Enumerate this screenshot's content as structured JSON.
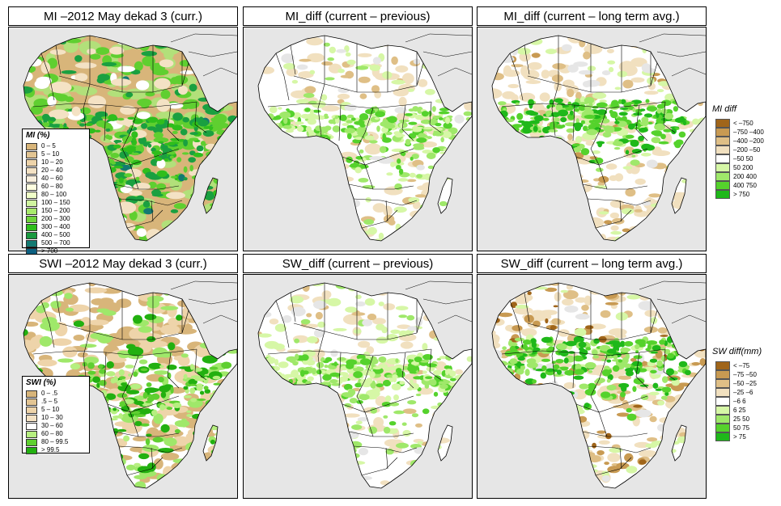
{
  "panels": [
    {
      "id": "mi_curr",
      "title": "MI –2012 May dekad 3 (curr.)",
      "style": "mi"
    },
    {
      "id": "mi_prev",
      "title": "MI_diff (current – previous)",
      "style": "diffA"
    },
    {
      "id": "mi_lta",
      "title": "MI_diff (current – long term avg.)",
      "style": "diffB"
    },
    {
      "id": "sw_curr",
      "title": "SWI –2012 May dekad 3 (curr.)",
      "style": "swi"
    },
    {
      "id": "sw_prev",
      "title": "SW_diff (current – previous)",
      "style": "diffA"
    },
    {
      "id": "sw_lta",
      "title": "SW_diff (current – long term avg.)",
      "style": "diffC"
    }
  ],
  "legend_mi": {
    "title": "MI (%)",
    "items": [
      {
        "label": "0 – 5",
        "color": "#d8b57a"
      },
      {
        "label": "5 – 10",
        "color": "#e3c593"
      },
      {
        "label": "10 – 20",
        "color": "#eed4aa"
      },
      {
        "label": "20 – 40",
        "color": "#f4e2c4"
      },
      {
        "label": "40 – 60",
        "color": "#f9efdd"
      },
      {
        "label": "60 – 80",
        "color": "#ffffe0"
      },
      {
        "label": "80 – 100",
        "color": "#f0ffc8"
      },
      {
        "label": "100 – 150",
        "color": "#d0f5a0"
      },
      {
        "label": "150 – 200",
        "color": "#a8ea6c"
      },
      {
        "label": "200 – 300",
        "color": "#6fd43c"
      },
      {
        "label": "300 – 400",
        "color": "#2fbe1c"
      },
      {
        "label": "400 – 500",
        "color": "#1a9a40"
      },
      {
        "label": "500 – 700",
        "color": "#137a72"
      },
      {
        "label": "> 700",
        "color": "#0b5f80"
      }
    ]
  },
  "legend_swi": {
    "title": "SWI (%)",
    "items": [
      {
        "label": "0 – .5",
        "color": "#d8b57a"
      },
      {
        "label": ".5 – 5",
        "color": "#e3c593"
      },
      {
        "label": "5 – 10",
        "color": "#eed4aa"
      },
      {
        "label": "10 – 30",
        "color": "#f4e2c4"
      },
      {
        "label": "30 – 60",
        "color": "#ffffff"
      },
      {
        "label": "60 – 80",
        "color": "#b6ef80"
      },
      {
        "label": "80 – 99.5",
        "color": "#5fd030"
      },
      {
        "label": "> 99.5",
        "color": "#22b010"
      }
    ]
  },
  "legend_mi_diff": {
    "title": "MI diff",
    "items": [
      {
        "label": "< –750",
        "color": "#a0651a"
      },
      {
        "label": "–750 –400",
        "color": "#c89a52"
      },
      {
        "label": "–400 –200",
        "color": "#dfbf86"
      },
      {
        "label": "–200 –50",
        "color": "#f1e0bf"
      },
      {
        "label": "–50  50",
        "color": "#ffffff"
      },
      {
        "label": " 50  200",
        "color": "#d6f7a6"
      },
      {
        "label": "200  400",
        "color": "#9fe86a"
      },
      {
        "label": "400  750",
        "color": "#55d22c"
      },
      {
        "label": "> 750",
        "color": "#1fb81a"
      }
    ]
  },
  "legend_sw_diff": {
    "title": "SW diff(mm)",
    "items": [
      {
        "label": "< –75",
        "color": "#a0651a"
      },
      {
        "label": "–75 –50",
        "color": "#c89a52"
      },
      {
        "label": "–50 –25",
        "color": "#dfbf86"
      },
      {
        "label": "–25 –6",
        "color": "#f1e0bf"
      },
      {
        "label": "–6  6",
        "color": "#ffffff"
      },
      {
        "label": " 6  25",
        "color": "#d6f7a6"
      },
      {
        "label": "25  50",
        "color": "#9fe86a"
      },
      {
        "label": "50  75",
        "color": "#55d22c"
      },
      {
        "label": "> 75",
        "color": "#1fb81a"
      }
    ]
  }
}
